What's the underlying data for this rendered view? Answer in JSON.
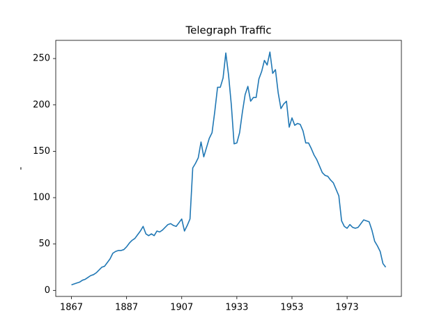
{
  "chart_data": {
    "type": "line",
    "title": "Telegraph Traffic",
    "y_label": "-",
    "categories": [
      "1867",
      null,
      null,
      null,
      null,
      null,
      null,
      null,
      null,
      null,
      null,
      null,
      null,
      null,
      null,
      null,
      null,
      null,
      null,
      null,
      "1887",
      null,
      null,
      null,
      null,
      null,
      null,
      null,
      null,
      null,
      null,
      null,
      null,
      null,
      null,
      null,
      null,
      null,
      null,
      null,
      "1907",
      null,
      null,
      null,
      null,
      null,
      null,
      null,
      null,
      null,
      null,
      null,
      null,
      null,
      null,
      null,
      null,
      null,
      null,
      null,
      "1933",
      null,
      null,
      null,
      null,
      null,
      null,
      null,
      null,
      null,
      null,
      null,
      null,
      null,
      null,
      null,
      null,
      null,
      null,
      null,
      "1953",
      null,
      null,
      null,
      null,
      null,
      null,
      null,
      null,
      null,
      null,
      null,
      null,
      null,
      null,
      null,
      null,
      null,
      null,
      null,
      "1973",
      null,
      null,
      null,
      null,
      null,
      null,
      null,
      null,
      null,
      null,
      null,
      null,
      null,
      null
    ],
    "series": [
      {
        "name": "Telegraph Traffic",
        "color": "#1f77b4",
        "values": [
          6,
          7,
          8,
          9,
          11,
          12,
          14,
          16,
          17,
          19,
          22,
          25,
          26,
          30,
          34,
          40,
          42,
          43,
          43,
          44,
          47,
          51,
          54,
          56,
          60,
          64,
          69,
          61,
          59,
          61,
          59,
          64,
          63,
          65,
          68,
          71,
          72,
          70,
          69,
          73,
          77,
          64,
          70,
          77,
          132,
          137,
          143,
          160,
          144,
          154,
          164,
          170,
          193,
          219,
          219,
          229,
          256,
          232,
          200,
          158,
          159,
          170,
          192,
          211,
          220,
          204,
          208,
          208,
          228,
          236,
          248,
          243,
          257,
          234,
          238,
          213,
          196,
          201,
          204,
          176,
          186,
          178,
          180,
          179,
          172,
          159,
          159,
          153,
          146,
          141,
          134,
          127,
          124,
          123,
          119,
          116,
          109,
          102,
          75,
          69,
          67,
          71,
          68,
          67,
          68,
          72,
          76,
          75,
          74,
          65,
          53,
          48,
          42,
          29,
          25
        ]
      }
    ],
    "ylim": [
      -6.5,
      269.6
    ],
    "yticks": [
      0,
      50,
      100,
      150,
      200,
      250
    ],
    "grid": false
  }
}
